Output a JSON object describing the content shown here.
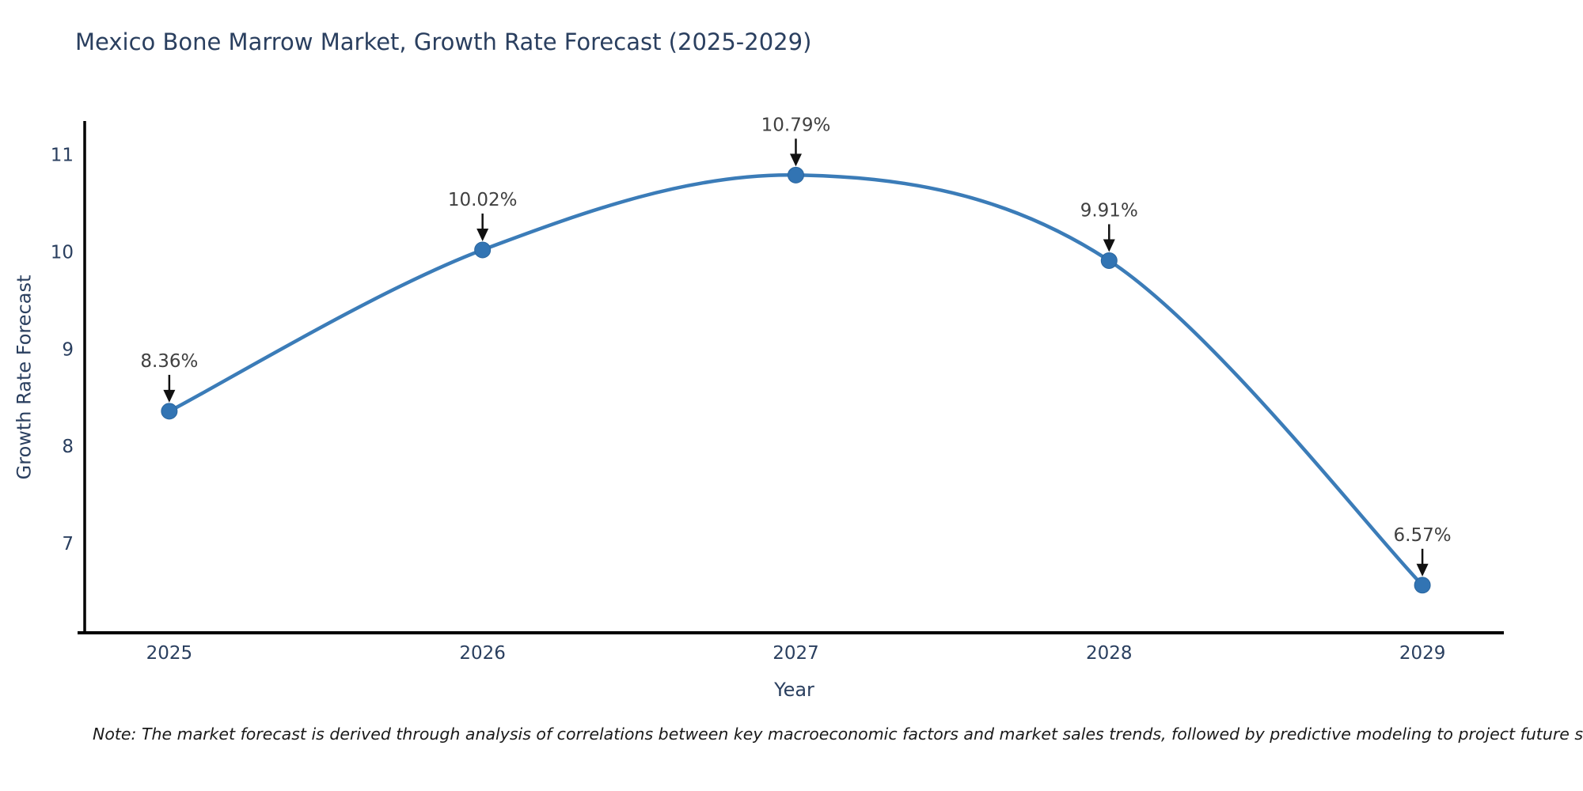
{
  "note": "Note: The market forecast is derived through analysis of correlations between key macroeconomic factors and market sales trends, followed by predictive modeling to project future sales.",
  "chart_data": {
    "type": "line",
    "title": "Mexico Bone Marrow Market, Growth Rate Forecast (2025-2029)",
    "xlabel": "Year",
    "ylabel": "Growth Rate Forecast",
    "x": [
      2025,
      2026,
      2027,
      2028,
      2029
    ],
    "y": [
      8.36,
      10.02,
      10.79,
      9.91,
      6.57
    ],
    "point_labels": [
      "8.36%",
      "10.02%",
      "10.79%",
      "9.91%",
      "6.57%"
    ],
    "xticks": [
      2025,
      2026,
      2027,
      2028,
      2029
    ],
    "yticks": [
      7,
      8,
      9,
      10,
      11
    ],
    "xlim": [
      2024.73,
      2029.26
    ],
    "ylim": [
      6.08,
      11.33
    ],
    "line_shape": "spline",
    "grid": false,
    "legend": "none",
    "colors": {
      "line": "#3b7cb8",
      "marker": "#3274b3",
      "marker_edge": "#2a669f",
      "axis_line": "#000000",
      "arrow": "#111111",
      "title_text": "#2a3f5f",
      "tick_text": "#2a3f5f",
      "annotation_text": "#404040"
    }
  }
}
